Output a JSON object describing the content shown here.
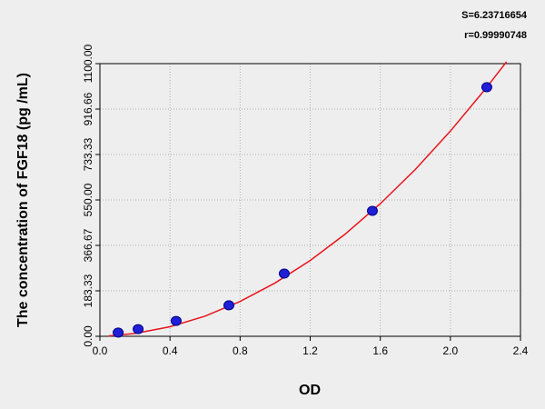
{
  "chart_data": {
    "type": "scatter",
    "annotations": [
      "S=6.23716654",
      "r=0.99990748"
    ],
    "xlabel": "OD",
    "ylabel": "The concentration of FGF18 (pg /mL)",
    "xlim": [
      0,
      2.4
    ],
    "ylim": [
      0,
      1100
    ],
    "xticks": [
      {
        "value": 0,
        "label": "0.0"
      },
      0.4,
      0.8,
      1.2,
      1.6,
      {
        "value": 2,
        "label": "2.0"
      },
      2.4
    ],
    "yticks": [
      {
        "value": 0,
        "label": "0.00"
      },
      183.33,
      366.67,
      {
        "value": 550,
        "label": "550.00"
      },
      733.33,
      916.66,
      {
        "value": 1100,
        "label": "1100.00"
      }
    ],
    "grid": true,
    "points": {
      "color": "#1f1fd6",
      "x": [
        0.104,
        0.218,
        0.435,
        0.736,
        1.052,
        1.555,
        2.208
      ],
      "y": [
        15,
        29,
        62,
        125,
        253,
        506,
        1005
      ]
    },
    "fit": {
      "color": "#e8141c",
      "x": [
        0.05,
        0.2,
        0.4,
        0.6,
        0.8,
        1.0,
        1.2,
        1.4,
        1.6,
        1.8,
        2.0,
        2.2,
        2.3,
        2.32
      ],
      "y": [
        1.3,
        11.2,
        38.4,
        81.3,
        140.3,
        215.1,
        305.8,
        412.5,
        534.9,
        673.3,
        827.6,
        997.8,
        1088.8,
        1107.5
      ]
    }
  }
}
